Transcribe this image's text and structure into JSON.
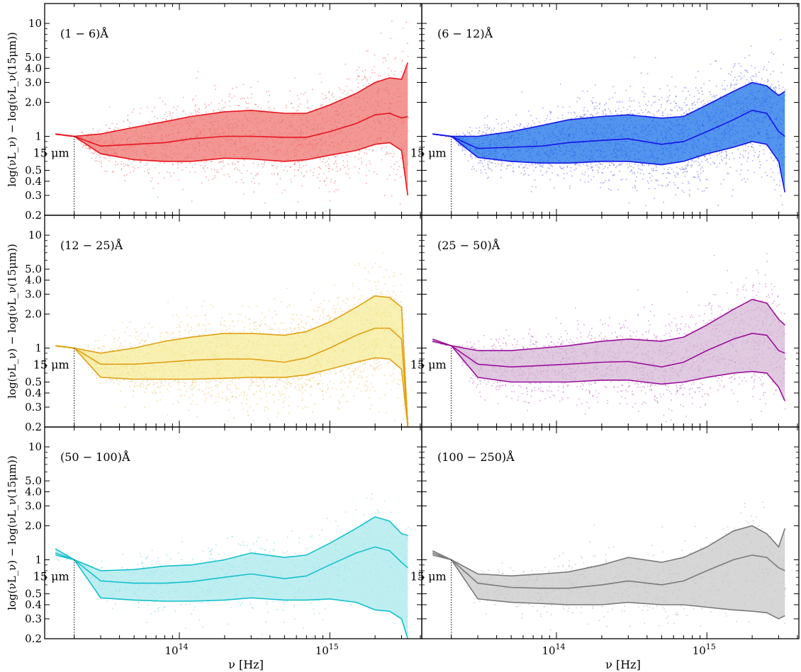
{
  "figure": {
    "ylabel": "log(νL_ν) − log(νL_ν(15μm))",
    "xlabel": "ν [Hz]",
    "reference_label": "15 μm",
    "y_ticks": [
      {
        "value": 10,
        "label": "10"
      },
      {
        "value": 5,
        "label": "5.0"
      },
      {
        "value": 4,
        "label": "4.0"
      },
      {
        "value": 3,
        "label": "3.0"
      },
      {
        "value": 2,
        "label": "2.0"
      },
      {
        "value": 1,
        "label": "1"
      },
      {
        "value": 0.5,
        "label": "0.5"
      },
      {
        "value": 0.4,
        "label": "0.4"
      },
      {
        "value": 0.3,
        "label": "0.3"
      },
      {
        "value": 0.2,
        "label": "0.2"
      }
    ],
    "x_ticks": [
      {
        "value": 100000000000000.0,
        "base": "10",
        "exp": "14"
      },
      {
        "value": 1000000000000000.0,
        "base": "10",
        "exp": "15"
      }
    ]
  },
  "chart_data": [
    {
      "type": "area",
      "panel_label": "(1 − 6)Å",
      "color": "#e8141e",
      "fill_color": "#ee7470",
      "xscale": "log",
      "yscale": "log",
      "xlim": [
        13000000000000.0,
        4000000000000000.0
      ],
      "ylim": [
        0.2,
        15
      ],
      "reference_x": 20000000000000.0,
      "x": [
        15000000000000.0,
        20000000000000.0,
        30000000000000.0,
        50000000000000.0,
        80000000000000.0,
        120000000000000.0,
        200000000000000.0,
        300000000000000.0,
        500000000000000.0,
        700000000000000.0,
        1000000000000000.0,
        1500000000000000.0,
        2000000000000000.0,
        2500000000000000.0,
        3000000000000000.0,
        3300000000000000.0
      ],
      "series": [
        {
          "name": "upper",
          "values": [
            1.05,
            1.0,
            1.05,
            1.2,
            1.35,
            1.5,
            1.65,
            1.7,
            1.6,
            1.6,
            1.9,
            2.4,
            3.0,
            3.3,
            3.2,
            4.5
          ]
        },
        {
          "name": "median",
          "values": [
            1.05,
            1.0,
            0.82,
            0.85,
            0.88,
            0.95,
            1.0,
            1.0,
            0.98,
            0.98,
            1.1,
            1.3,
            1.55,
            1.6,
            1.45,
            1.5
          ]
        },
        {
          "name": "lower",
          "values": [
            1.05,
            1.0,
            0.7,
            0.62,
            0.6,
            0.6,
            0.64,
            0.63,
            0.6,
            0.62,
            0.68,
            0.75,
            0.85,
            0.88,
            0.75,
            0.3
          ]
        }
      ]
    },
    {
      "type": "area",
      "panel_label": "(6 − 12)Å",
      "color": "#1414e6",
      "fill_color": "#1a70e8",
      "xscale": "log",
      "yscale": "log",
      "xlim": [
        13000000000000.0,
        4000000000000000.0
      ],
      "ylim": [
        0.2,
        15
      ],
      "reference_x": 20000000000000.0,
      "x": [
        15000000000000.0,
        20000000000000.0,
        30000000000000.0,
        50000000000000.0,
        80000000000000.0,
        120000000000000.0,
        200000000000000.0,
        300000000000000.0,
        500000000000000.0,
        700000000000000.0,
        1000000000000000.0,
        1500000000000000.0,
        2000000000000000.0,
        2500000000000000.0,
        3000000000000000.0,
        3300000000000000.0
      ],
      "series": [
        {
          "name": "upper",
          "values": [
            1.05,
            1.0,
            1.0,
            1.1,
            1.25,
            1.4,
            1.5,
            1.55,
            1.45,
            1.5,
            1.9,
            2.5,
            3.0,
            2.8,
            2.3,
            2.5
          ]
        },
        {
          "name": "median",
          "values": [
            1.05,
            1.0,
            0.78,
            0.8,
            0.82,
            0.88,
            0.92,
            0.95,
            0.85,
            0.9,
            1.1,
            1.4,
            1.7,
            1.6,
            1.1,
            1.0
          ]
        },
        {
          "name": "lower",
          "values": [
            1.05,
            1.0,
            0.65,
            0.6,
            0.58,
            0.58,
            0.6,
            0.6,
            0.56,
            0.6,
            0.7,
            0.8,
            0.9,
            0.85,
            0.6,
            0.32
          ]
        }
      ]
    },
    {
      "type": "area",
      "panel_label": "(12 − 25)Å",
      "color": "#e0a014",
      "fill_color": "#f5ec9a",
      "xscale": "log",
      "yscale": "log",
      "xlim": [
        13000000000000.0,
        4000000000000000.0
      ],
      "ylim": [
        0.2,
        15
      ],
      "reference_x": 20000000000000.0,
      "x": [
        15000000000000.0,
        20000000000000.0,
        30000000000000.0,
        50000000000000.0,
        80000000000000.0,
        120000000000000.0,
        200000000000000.0,
        300000000000000.0,
        500000000000000.0,
        700000000000000.0,
        1000000000000000.0,
        1500000000000000.0,
        2000000000000000.0,
        2500000000000000.0,
        3000000000000000.0,
        3300000000000000.0
      ],
      "series": [
        {
          "name": "upper",
          "values": [
            1.05,
            1.0,
            0.9,
            1.0,
            1.15,
            1.25,
            1.35,
            1.35,
            1.3,
            1.4,
            1.7,
            2.3,
            2.9,
            2.8,
            2.3,
            0.2
          ]
        },
        {
          "name": "median",
          "values": [
            1.05,
            1.0,
            0.72,
            0.72,
            0.75,
            0.78,
            0.8,
            0.8,
            0.75,
            0.82,
            1.0,
            1.3,
            1.5,
            1.5,
            1.2,
            0.2
          ]
        },
        {
          "name": "lower",
          "values": [
            1.05,
            1.0,
            0.55,
            0.53,
            0.53,
            0.53,
            0.54,
            0.55,
            0.55,
            0.58,
            0.65,
            0.75,
            0.82,
            0.8,
            0.65,
            0.2
          ]
        }
      ]
    },
    {
      "type": "area",
      "panel_label": "(25 − 50)Å",
      "color": "#9a0f9a",
      "fill_color": "#d6b8d6",
      "xscale": "log",
      "yscale": "log",
      "xlim": [
        13000000000000.0,
        4000000000000000.0
      ],
      "ylim": [
        0.2,
        15
      ],
      "reference_x": 20000000000000.0,
      "x": [
        15000000000000.0,
        20000000000000.0,
        30000000000000.0,
        50000000000000.0,
        80000000000000.0,
        120000000000000.0,
        200000000000000.0,
        300000000000000.0,
        500000000000000.0,
        700000000000000.0,
        1000000000000000.0,
        1500000000000000.0,
        2000000000000000.0,
        2500000000000000.0,
        3000000000000000.0,
        3300000000000000.0
      ],
      "series": [
        {
          "name": "upper",
          "values": [
            1.2,
            1.05,
            0.95,
            0.95,
            1.0,
            1.05,
            1.15,
            1.2,
            1.15,
            1.25,
            1.6,
            2.2,
            2.7,
            2.5,
            1.8,
            1.6
          ]
        },
        {
          "name": "median",
          "values": [
            1.15,
            1.05,
            0.72,
            0.68,
            0.7,
            0.72,
            0.75,
            0.76,
            0.68,
            0.75,
            0.95,
            1.2,
            1.35,
            1.3,
            0.95,
            0.9
          ]
        },
        {
          "name": "lower",
          "values": [
            1.15,
            1.05,
            0.55,
            0.5,
            0.5,
            0.5,
            0.52,
            0.52,
            0.48,
            0.5,
            0.55,
            0.6,
            0.62,
            0.6,
            0.45,
            0.34
          ]
        }
      ]
    },
    {
      "type": "area",
      "panel_label": "(50 − 100)Å",
      "color": "#14c0cc",
      "fill_color": "#a9e8ec",
      "xscale": "log",
      "yscale": "log",
      "xlim": [
        13000000000000.0,
        4000000000000000.0
      ],
      "ylim": [
        0.2,
        15
      ],
      "reference_x": 20000000000000.0,
      "x": [
        15000000000000.0,
        20000000000000.0,
        30000000000000.0,
        50000000000000.0,
        80000000000000.0,
        120000000000000.0,
        200000000000000.0,
        300000000000000.0,
        500000000000000.0,
        700000000000000.0,
        1000000000000000.0,
        1500000000000000.0,
        2000000000000000.0,
        2500000000000000.0,
        3000000000000000.0,
        3300000000000000.0
      ],
      "series": [
        {
          "name": "upper",
          "values": [
            1.25,
            1.0,
            0.8,
            0.82,
            0.88,
            0.9,
            1.0,
            1.15,
            1.05,
            1.1,
            1.4,
            1.9,
            2.4,
            2.2,
            1.7,
            1.65
          ]
        },
        {
          "name": "median",
          "values": [
            1.15,
            1.0,
            0.65,
            0.62,
            0.62,
            0.64,
            0.7,
            0.75,
            0.68,
            0.72,
            0.9,
            1.15,
            1.3,
            1.2,
            0.95,
            0.85
          ]
        },
        {
          "name": "lower",
          "values": [
            1.1,
            1.0,
            0.46,
            0.44,
            0.43,
            0.43,
            0.44,
            0.46,
            0.44,
            0.44,
            0.45,
            0.42,
            0.36,
            0.35,
            0.3,
            0.2
          ]
        }
      ]
    },
    {
      "type": "area",
      "panel_label": "(100 − 250)Å",
      "color": "#7a7a7a",
      "fill_color": "#c8c8c8",
      "xscale": "log",
      "yscale": "log",
      "xlim": [
        13000000000000.0,
        4000000000000000.0
      ],
      "ylim": [
        0.2,
        15
      ],
      "reference_x": 20000000000000.0,
      "x": [
        15000000000000.0,
        20000000000000.0,
        30000000000000.0,
        50000000000000.0,
        80000000000000.0,
        120000000000000.0,
        200000000000000.0,
        300000000000000.0,
        500000000000000.0,
        700000000000000.0,
        1000000000000000.0,
        1500000000000000.0,
        2000000000000000.0,
        2500000000000000.0,
        3000000000000000.0,
        3300000000000000.0
      ],
      "series": [
        {
          "name": "upper",
          "values": [
            1.2,
            1.0,
            0.75,
            0.72,
            0.75,
            0.78,
            0.9,
            1.05,
            0.95,
            1.05,
            1.3,
            1.8,
            2.0,
            1.7,
            1.3,
            1.9
          ]
        },
        {
          "name": "median",
          "values": [
            1.15,
            1.0,
            0.62,
            0.57,
            0.56,
            0.56,
            0.6,
            0.65,
            0.6,
            0.65,
            0.8,
            1.0,
            1.1,
            1.05,
            0.85,
            0.8
          ]
        },
        {
          "name": "lower",
          "values": [
            1.1,
            1.0,
            0.45,
            0.42,
            0.41,
            0.4,
            0.4,
            0.42,
            0.4,
            0.4,
            0.38,
            0.36,
            0.35,
            0.34,
            0.3,
            0.32
          ]
        }
      ]
    }
  ]
}
